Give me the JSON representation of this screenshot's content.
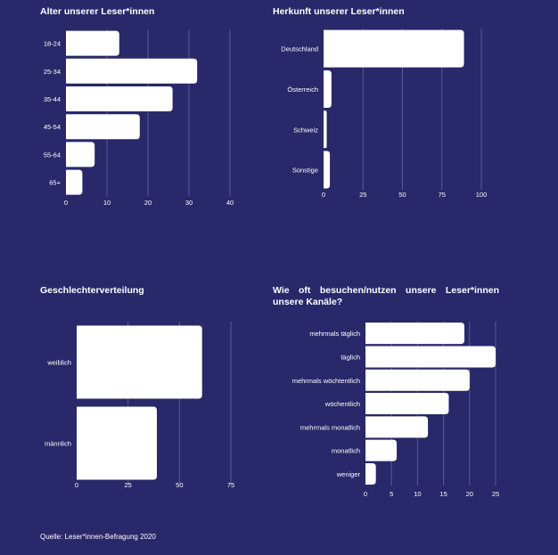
{
  "colors": {
    "background": "#28286a",
    "bar": "#ffffff",
    "grid": "#5a5a96",
    "text": "#ffffff"
  },
  "source": "Quelle: Leser*innen-Befragung 2020",
  "chart_data": [
    {
      "type": "bar",
      "orientation": "horizontal",
      "title": "Alter unserer Leser*innen",
      "categories": [
        "18-24",
        "25-34",
        "35-44",
        "45-54",
        "55-64",
        "65+"
      ],
      "values": [
        13,
        32,
        26,
        18,
        7,
        4
      ],
      "xlim": [
        0,
        40
      ],
      "xticks": [
        0,
        10,
        20,
        30,
        40
      ],
      "grid": true
    },
    {
      "type": "bar",
      "orientation": "horizontal",
      "title": "Herkunft unserer Leser*innen",
      "categories": [
        "Deutschland",
        "Österreich",
        "Schweiz",
        "Sonstige"
      ],
      "values": [
        89,
        5,
        2,
        4
      ],
      "xlim": [
        0,
        100
      ],
      "xticks": [
        0,
        25,
        50,
        75,
        100
      ],
      "grid": true
    },
    {
      "type": "bar",
      "orientation": "horizontal",
      "title": "Geschlechterverteilung",
      "categories": [
        "weiblich",
        "männlich"
      ],
      "values": [
        61,
        39
      ],
      "xlim": [
        0,
        75
      ],
      "xticks": [
        0,
        25,
        50,
        75
      ],
      "grid": true
    },
    {
      "type": "bar",
      "orientation": "horizontal",
      "title": "Wie oft besuchen/nutzen unsere Leser*innen unsere Kanäle?",
      "categories": [
        "mehrmals täglich",
        "täglich",
        "mehrmals wöchtentlich",
        "wöchentlich",
        "mehrmals monatlich",
        "monatlich",
        "weniger"
      ],
      "values": [
        19,
        25,
        20,
        16,
        12,
        6,
        2
      ],
      "xlim": [
        0,
        25
      ],
      "xticks": [
        0,
        5,
        10,
        15,
        20,
        25
      ],
      "grid": true
    }
  ]
}
